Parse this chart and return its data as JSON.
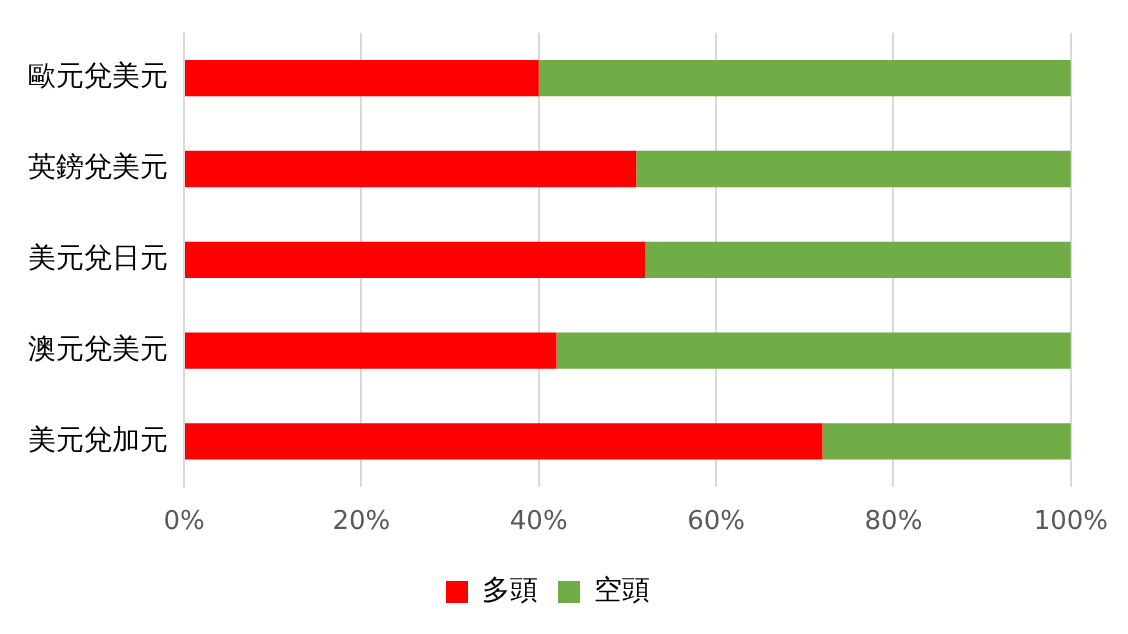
{
  "chart_data": {
    "type": "bar",
    "orientation": "horizontal",
    "stacked": true,
    "categories": [
      "歐元兌美元",
      "英鎊兌美元",
      "美元兌日元",
      "澳元兌美元",
      "美元兌加元"
    ],
    "series": [
      {
        "name": "多頭",
        "color": "#ff0000",
        "values": [
          40,
          51,
          52,
          42,
          72
        ]
      },
      {
        "name": "空頭",
        "color": "#70ad47",
        "values": [
          60,
          49,
          48,
          58,
          28
        ]
      }
    ],
    "xlim": [
      0,
      100
    ],
    "xticks": [
      {
        "value": 0,
        "label": "0%"
      },
      {
        "value": 20,
        "label": "20%"
      },
      {
        "value": 40,
        "label": "40%"
      },
      {
        "value": 60,
        "label": "60%"
      },
      {
        "value": 80,
        "label": "80%"
      },
      {
        "value": 100,
        "label": "100%"
      }
    ],
    "grid": "x",
    "legend": "bottom"
  }
}
